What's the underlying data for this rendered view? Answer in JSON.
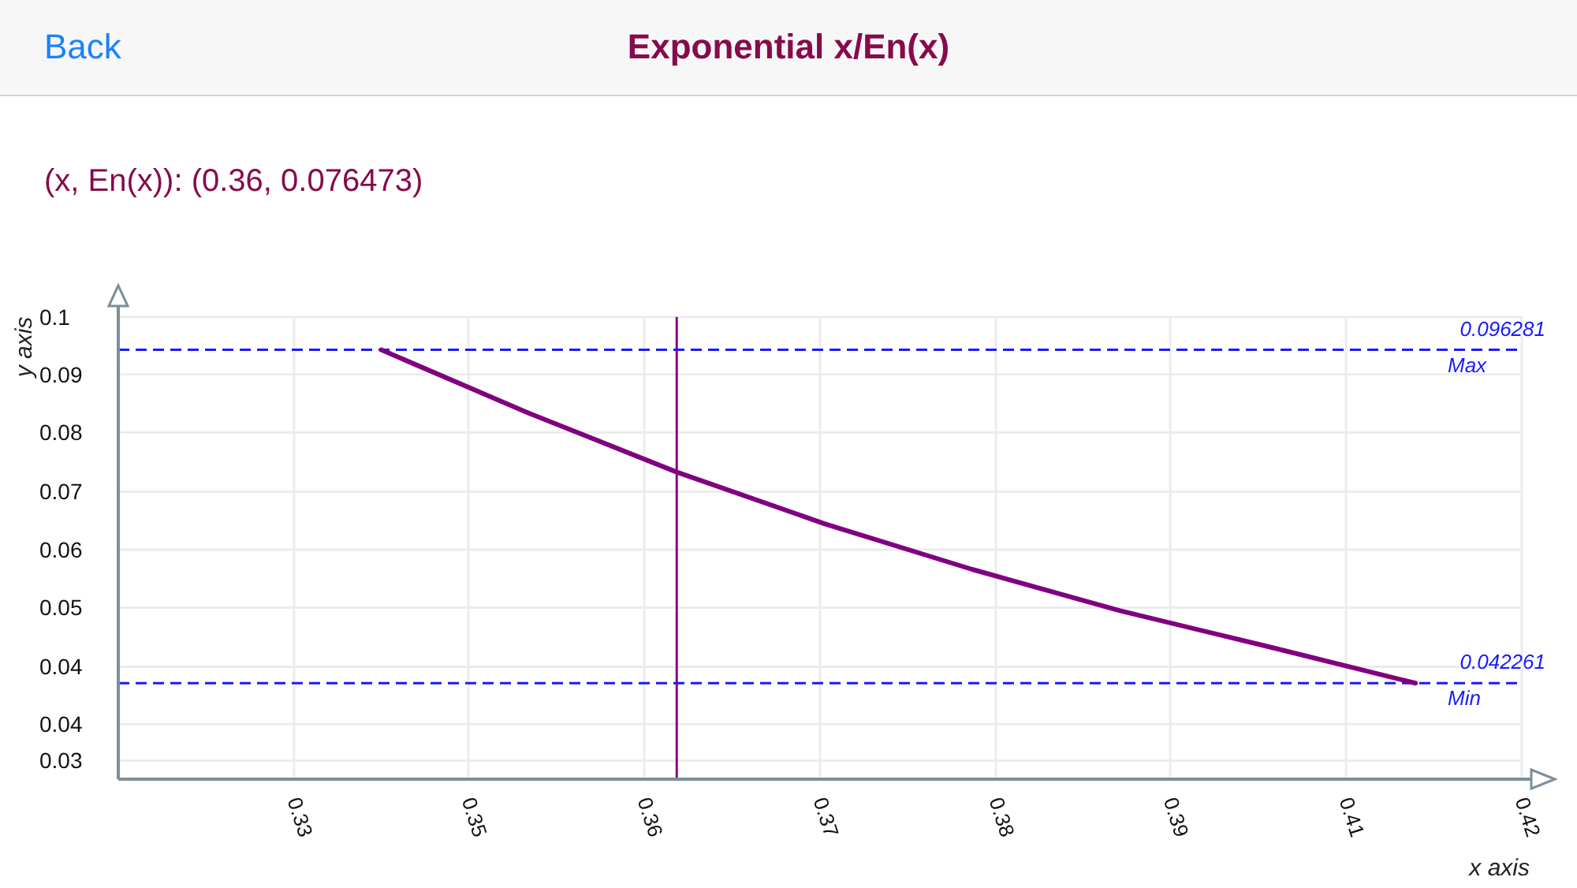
{
  "chart_data": {
    "type": "line",
    "title": "Exponential x/En(x)",
    "subtitle": "(x, En(x)): (0.36, 0.076473)",
    "xlabel": "x axis",
    "ylabel": "y axis",
    "annotations": [
      "Back",
      {
        "text": "0.096281",
        "x": 0.4172,
        "y": 0.096281
      },
      {
        "text": "0.042261",
        "x": 0.4172,
        "y": 0.042261
      }
    ],
    "x": [
      0.34,
      0.35,
      0.36,
      0.37,
      0.38,
      0.39,
      0.4,
      0.41
    ],
    "series": [
      {
        "color": "#800080",
        "values": [
          0.096281,
          0.086,
          0.076473,
          0.0681,
          0.0607,
          0.054,
          0.0482,
          0.042261
        ]
      }
    ],
    "xlim": [
      0.3222,
      0.4172
    ],
    "xticks": [
      {
        "value": 0.3341,
        "label": "0.33"
      },
      {
        "value": 0.3459,
        "label": "0.35"
      },
      {
        "value": 0.3578,
        "label": "0.36"
      },
      {
        "value": 0.3697,
        "label": "0.37"
      },
      {
        "value": 0.3816,
        "label": "0.38"
      },
      {
        "value": 0.3934,
        "label": "0.39"
      },
      {
        "value": 0.4053,
        "label": "0.41"
      },
      {
        "value": 0.4172,
        "label": "0.42"
      }
    ],
    "ylim": [
      0.0267,
      0.1016
    ],
    "yticks": [
      {
        "value": 0.0297,
        "label": "0.03"
      },
      {
        "value": 0.0356,
        "label": "0.04"
      },
      {
        "value": 0.0449,
        "label": "0.04"
      },
      {
        "value": 0.0545,
        "label": "0.05"
      },
      {
        "value": 0.0639,
        "label": "0.06"
      },
      {
        "value": 0.0733,
        "label": "0.07"
      },
      {
        "value": 0.0829,
        "label": "0.08"
      },
      {
        "value": 0.0923,
        "label": "0.09"
      },
      {
        "value": 0.1016,
        "label": "0.1"
      }
    ],
    "ref_lines": [
      {
        "axis": "x",
        "value": 0.36,
        "color": "#8b008b",
        "line_style": "solid"
      },
      {
        "axis": "y",
        "value": 0.096281,
        "label": "Max",
        "color": "#1a1aff",
        "line_style": "dashed"
      },
      {
        "axis": "y",
        "value": 0.042261,
        "label": "Min",
        "color": "#1a1aff",
        "line_style": "dashed"
      }
    ],
    "grid": true,
    "marker": "none",
    "line_style": "solid"
  }
}
